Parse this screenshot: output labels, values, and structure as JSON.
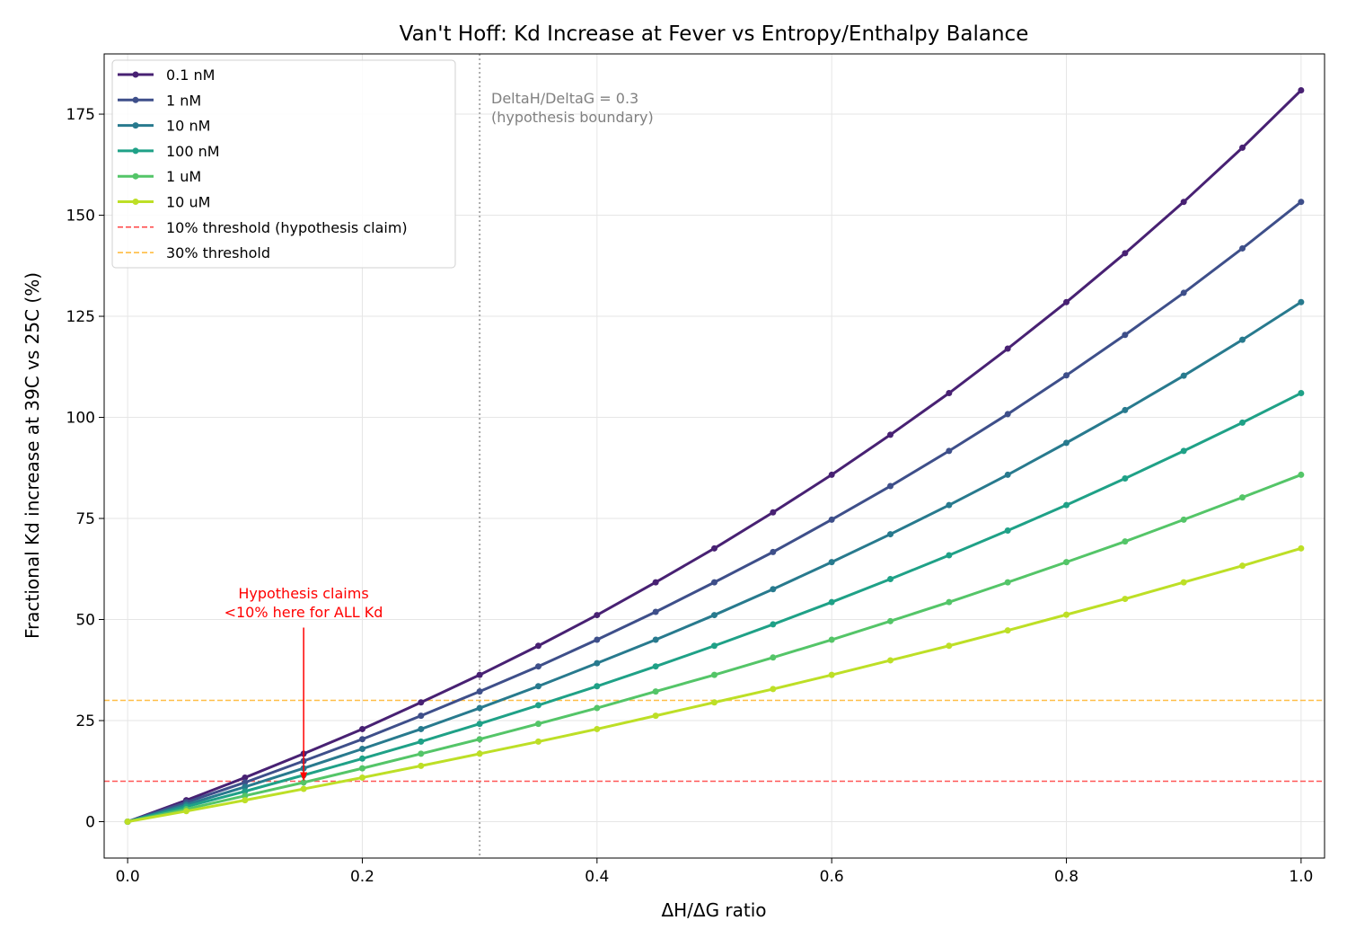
{
  "chart_data": {
    "type": "line",
    "title": "Van't Hoff: Kd Increase at Fever vs Entropy/Enthalpy Balance",
    "xlabel": "ΔH/ΔG ratio",
    "ylabel": "Fractional Kd increase at 39C vs 25C (%)",
    "xlim": [
      -0.02,
      1.02
    ],
    "ylim": [
      -9.0,
      189.9
    ],
    "xticks": [
      "0.0",
      "0.2",
      "0.4",
      "0.6",
      "0.8",
      "1.0"
    ],
    "yticks": [
      "0",
      "25",
      "50",
      "75",
      "100",
      "125",
      "150",
      "175"
    ],
    "grid": true,
    "legend_position": "top-left",
    "x": [
      0,
      0.05,
      0.1,
      0.15,
      0.2,
      0.25,
      0.3,
      0.35,
      0.4,
      0.45,
      0.5,
      0.55,
      0.6,
      0.65,
      0.7,
      0.75,
      0.8,
      0.85,
      0.9,
      0.95,
      1.0
    ],
    "series": [
      {
        "name": "0.1 nM",
        "color": "#482173",
        "values": [
          0,
          5.3,
          10.9,
          16.8,
          22.9,
          29.5,
          36.3,
          43.5,
          51.1,
          59.2,
          67.6,
          76.5,
          85.8,
          95.7,
          106.0,
          117.0,
          128.5,
          140.6,
          153.3,
          166.7,
          180.9
        ]
      },
      {
        "name": "1 nM",
        "color": "#3e4f8a",
        "values": [
          0,
          4.8,
          9.7,
          15.0,
          20.4,
          26.2,
          32.2,
          38.4,
          45.0,
          51.9,
          59.2,
          66.7,
          74.7,
          83.0,
          91.7,
          100.8,
          110.4,
          120.4,
          130.8,
          141.8,
          153.3
        ]
      },
      {
        "name": "10 nM",
        "color": "#287a8e",
        "values": [
          0,
          4.2,
          8.6,
          13.2,
          18.0,
          22.9,
          28.1,
          33.5,
          39.2,
          45.0,
          51.1,
          57.5,
          64.2,
          71.1,
          78.3,
          85.8,
          93.7,
          101.8,
          110.3,
          119.2,
          128.5
        ]
      },
      {
        "name": "100 nM",
        "color": "#1fa187",
        "values": [
          0,
          3.7,
          7.5,
          11.5,
          15.6,
          19.8,
          24.2,
          28.8,
          33.5,
          38.4,
          43.5,
          48.8,
          54.3,
          60.0,
          65.9,
          72.0,
          78.3,
          84.9,
          91.7,
          98.7,
          106.0
        ]
      },
      {
        "name": "1 uM",
        "color": "#54c568",
        "values": [
          0,
          3.1,
          6.4,
          9.7,
          13.2,
          16.8,
          20.4,
          24.2,
          28.1,
          32.2,
          36.3,
          40.6,
          45.0,
          49.6,
          54.3,
          59.2,
          64.2,
          69.3,
          74.7,
          80.2,
          85.8
        ]
      },
      {
        "name": "10 uM",
        "color": "#bddf26",
        "values": [
          0,
          2.6,
          5.3,
          8.1,
          10.9,
          13.8,
          16.8,
          19.8,
          22.9,
          26.2,
          29.5,
          32.8,
          36.3,
          39.9,
          43.5,
          47.3,
          51.2,
          55.1,
          59.2,
          63.3,
          67.6
        ]
      }
    ],
    "hlines": [
      {
        "name": "10% threshold (hypothesis claim)",
        "y": 10,
        "color": "#ff4444"
      },
      {
        "name": "30% threshold",
        "y": 30,
        "color": "#ffb733"
      }
    ],
    "vline": {
      "x": 0.3,
      "color": "#aaaaaa",
      "label_line1": "DeltaH/DeltaG = 0.3",
      "label_line2": "(hypothesis boundary)"
    },
    "annotation": {
      "line1": "Hypothesis claims",
      "line2": "<10% here for ALL Kd",
      "color": "#ff0000",
      "arrow_from": [
        0.15,
        48
      ],
      "arrow_to": [
        0.15,
        10
      ]
    }
  }
}
